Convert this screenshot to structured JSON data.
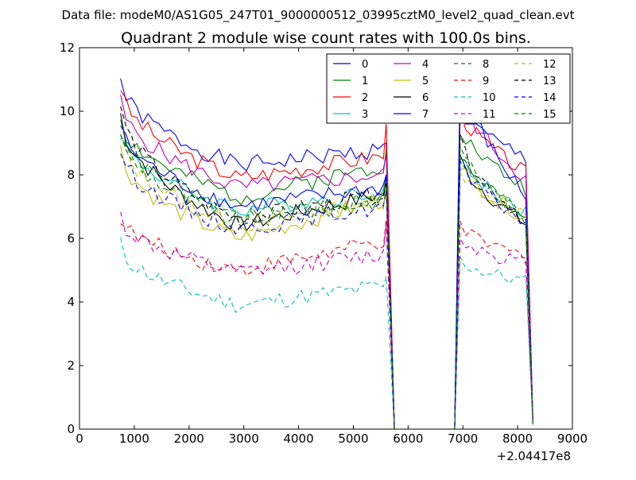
{
  "chart_data": {
    "type": "line",
    "suptitle": "Data file: modeM0/AS1G05_247T01_9000000512_03995cztM0_level2_quad_clean.evt",
    "title": "Quadrant 2 module wise count rates with 100.0s bins.",
    "xlabel": "",
    "ylabel": "",
    "x_offset_label": "+2.04417e8",
    "xlim": [
      0,
      9000
    ],
    "ylim": [
      0,
      12
    ],
    "x_ticks": [
      "0",
      "1000",
      "2000",
      "3000",
      "4000",
      "5000",
      "6000",
      "7000",
      "8000",
      "9000"
    ],
    "y_ticks": [
      "0",
      "2",
      "4",
      "6",
      "8",
      "10",
      "12"
    ],
    "grid": false,
    "legend_position": "top-right",
    "legend_columns": 4,
    "notes": "Time bins of 100 s from ~750 to ~8250 (offset +2.04417e8); rates drop to 0 between ~5750 and ~6850 (data gap). Values approximate per-module trends read from the plot.",
    "series": [
      {
        "name": "0",
        "color": "#0000ff",
        "dash": "solid",
        "start": 11.0,
        "mid": 8.3,
        "end": 8.8,
        "peak1": 9.0,
        "peak2": 10.0,
        "end2": 8.5
      },
      {
        "name": "1",
        "color": "#008000",
        "dash": "solid",
        "start": 9.8,
        "mid": 7.3,
        "end": 8.3,
        "peak1": 8.8,
        "peak2": 9.5,
        "end2": 7.5
      },
      {
        "name": "2",
        "color": "#ff0000",
        "dash": "solid",
        "start": 10.8,
        "mid": 7.9,
        "end": 8.6,
        "peak1": 9.6,
        "peak2": 10.0,
        "end2": 8.0
      },
      {
        "name": "3",
        "color": "#00bfbf",
        "dash": "solid",
        "start": 9.4,
        "mid": 6.9,
        "end": 7.5,
        "peak1": 8.0,
        "peak2": 8.5,
        "end2": 6.8
      },
      {
        "name": "4",
        "color": "#bf00bf",
        "dash": "solid",
        "start": 10.3,
        "mid": 7.6,
        "end": 8.0,
        "peak1": 8.6,
        "peak2": 10.5,
        "end2": 7.8
      },
      {
        "name": "5",
        "color": "#bfbf00",
        "dash": "solid",
        "start": 8.8,
        "mid": 6.0,
        "end": 7.2,
        "peak1": 7.8,
        "peak2": 8.4,
        "end2": 6.6
      },
      {
        "name": "6",
        "color": "#000000",
        "dash": "solid",
        "start": 9.9,
        "mid": 6.4,
        "end": 7.4,
        "peak1": 7.9,
        "peak2": 8.5,
        "end2": 6.4
      },
      {
        "name": "7",
        "color": "#0000ff",
        "dash": "solid",
        "start": 9.6,
        "mid": 7.0,
        "end": 7.6,
        "peak1": 8.0,
        "peak2": 11.1,
        "end2": 7.2
      },
      {
        "name": "8",
        "color": "#008000",
        "dash": "dashed",
        "start": 9.4,
        "mid": 6.5,
        "end": 7.2,
        "peak1": 7.6,
        "peak2": 9.0,
        "end2": 6.5
      },
      {
        "name": "9",
        "color": "#ff0000",
        "dash": "dashed",
        "start": 6.7,
        "mid": 5.0,
        "end": 5.9,
        "peak1": 6.6,
        "peak2": 6.3,
        "end2": 5.4
      },
      {
        "name": "10",
        "color": "#00bfbf",
        "dash": "dashed",
        "start": 5.8,
        "mid": 3.9,
        "end": 4.5,
        "peak1": 4.8,
        "peak2": 5.3,
        "end2": 4.6
      },
      {
        "name": "11",
        "color": "#bf00bf",
        "dash": "dashed",
        "start": 6.7,
        "mid": 4.9,
        "end": 5.5,
        "peak1": 6.4,
        "peak2": 6.0,
        "end2": 5.2
      },
      {
        "name": "12",
        "color": "#bfbf00",
        "dash": "dashed",
        "start": 9.2,
        "mid": 6.4,
        "end": 7.2,
        "peak1": 7.6,
        "peak2": 8.2,
        "end2": 6.6
      },
      {
        "name": "13",
        "color": "#000000",
        "dash": "dashed",
        "start": 10.2,
        "mid": 6.6,
        "end": 7.4,
        "peak1": 7.8,
        "peak2": 9.0,
        "end2": 6.5
      },
      {
        "name": "14",
        "color": "#0000ff",
        "dash": "dashed",
        "start": 8.8,
        "mid": 6.3,
        "end": 7.0,
        "peak1": 7.5,
        "peak2": 8.3,
        "end2": 6.5
      },
      {
        "name": "15",
        "color": "#008000",
        "dash": "dashed",
        "start": 9.5,
        "mid": 6.7,
        "end": 7.3,
        "peak1": 7.8,
        "peak2": 8.6,
        "end2": 6.7
      }
    ]
  }
}
